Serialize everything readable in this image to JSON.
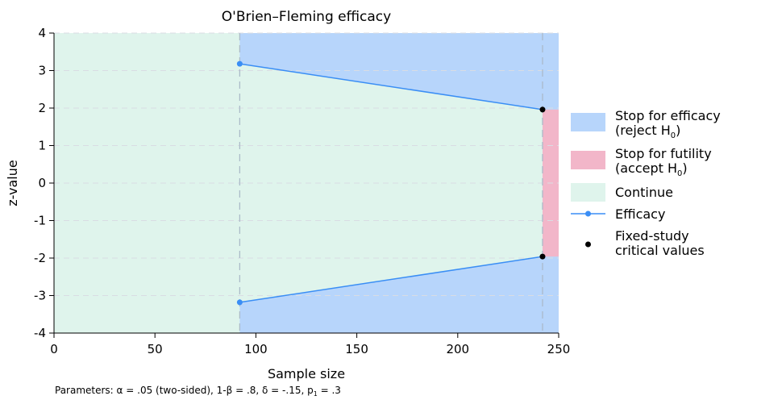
{
  "chart_data": {
    "type": "area",
    "title": "O'Brien–Fleming efficacy",
    "xlabel": "Sample size",
    "ylabel": "z-value",
    "xlim": [
      0,
      250
    ],
    "ylim": [
      -4,
      4
    ],
    "xticks": [
      0,
      50,
      100,
      150,
      200,
      250
    ],
    "yticks": [
      4,
      3,
      2,
      1,
      0,
      -1,
      -2,
      -3,
      -4
    ],
    "grid": true,
    "legend_position": "right",
    "looks": [
      92,
      242
    ],
    "series": [
      {
        "name": "Efficacy",
        "color": "#3a8ef5",
        "upper": [
          {
            "x": 92,
            "y": 3.18
          },
          {
            "x": 242,
            "y": 1.96
          }
        ],
        "lower": [
          {
            "x": 92,
            "y": -3.18
          },
          {
            "x": 242,
            "y": -1.96
          }
        ]
      },
      {
        "name": "Fixed-study critical values",
        "color": "#000000",
        "points": [
          {
            "x": 242,
            "y": 1.96
          },
          {
            "x": 242,
            "y": -1.96
          }
        ]
      }
    ],
    "regions": {
      "efficacy": {
        "color": "#b7d5fb"
      },
      "futility": {
        "color": "#f2b6c9"
      },
      "continue": {
        "color": "#dff4ec"
      }
    },
    "legend": {
      "efficacy_line1": "Stop for efficacy",
      "efficacy_line2": "(reject H",
      "futility_line1": "Stop for futility",
      "futility_line2": "(accept H",
      "h_sub": "0",
      "close_paren": ")",
      "continue": "Continue",
      "efficacy_line": "Efficacy",
      "fixed_line1": "Fixed-study",
      "fixed_line2": "critical values"
    },
    "note": {
      "prefix": "Parameters: α = .05 (two-sided), 1-β = .8, δ = -.15, p",
      "sub": "1",
      "suffix": " = .3"
    }
  }
}
